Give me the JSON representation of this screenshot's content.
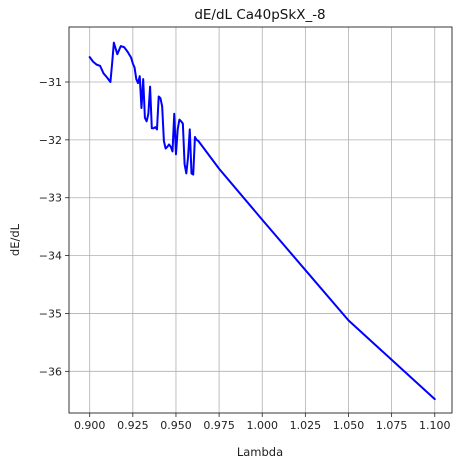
{
  "chart_data": {
    "type": "line",
    "title": "dE/dL Ca40pSkX_-8",
    "xlabel": "Lambda",
    "ylabel": "dE/dL",
    "xlim": [
      0.888,
      1.11
    ],
    "ylim": [
      -36.72,
      -30.05
    ],
    "grid": true,
    "xticks": [
      0.9,
      0.925,
      0.95,
      0.975,
      1.0,
      1.025,
      1.05,
      1.075,
      1.1
    ],
    "xtick_labels": [
      "0.900",
      "0.925",
      "0.950",
      "0.975",
      "1.000",
      "1.025",
      "1.050",
      "1.075",
      "1.100"
    ],
    "yticks": [
      -31,
      -32,
      -33,
      -34,
      -35,
      -36
    ],
    "ytick_labels": [
      "−31",
      "−32",
      "−33",
      "−34",
      "−35",
      "−36"
    ],
    "series": [
      {
        "color": "#0000ff",
        "x": [
          0.9,
          0.902,
          0.904,
          0.906,
          0.908,
          0.91,
          0.911,
          0.912,
          0.913,
          0.914,
          0.916,
          0.918,
          0.92,
          0.922,
          0.924,
          0.925,
          0.926,
          0.927,
          0.928,
          0.929,
          0.93,
          0.931,
          0.932,
          0.933,
          0.934,
          0.935,
          0.936,
          0.937,
          0.938,
          0.939,
          0.94,
          0.941,
          0.942,
          0.943,
          0.944,
          0.945,
          0.946,
          0.947,
          0.948,
          0.949,
          0.95,
          0.951,
          0.952,
          0.953,
          0.954,
          0.955,
          0.956,
          0.957,
          0.958,
          0.959,
          0.96,
          0.961,
          0.962,
          0.963,
          0.975,
          1.0,
          1.025,
          1.05,
          1.075,
          1.1
        ],
        "y": [
          -30.57,
          -30.65,
          -30.7,
          -30.72,
          -30.85,
          -30.92,
          -30.96,
          -31.0,
          -30.68,
          -30.32,
          -30.52,
          -30.38,
          -30.4,
          -30.48,
          -30.58,
          -30.68,
          -30.75,
          -30.95,
          -31.02,
          -30.9,
          -31.45,
          -30.95,
          -31.62,
          -31.68,
          -31.55,
          -31.08,
          -31.8,
          -31.8,
          -31.78,
          -31.82,
          -31.25,
          -31.28,
          -31.42,
          -32.02,
          -32.15,
          -32.12,
          -32.08,
          -32.12,
          -32.2,
          -31.55,
          -32.25,
          -31.82,
          -31.65,
          -31.68,
          -31.72,
          -32.42,
          -32.58,
          -32.3,
          -31.82,
          -32.58,
          -32.6,
          -31.95,
          -32.0,
          -32.02,
          -32.5,
          -33.38,
          -34.25,
          -35.12,
          -35.8,
          -36.48
        ]
      }
    ]
  }
}
